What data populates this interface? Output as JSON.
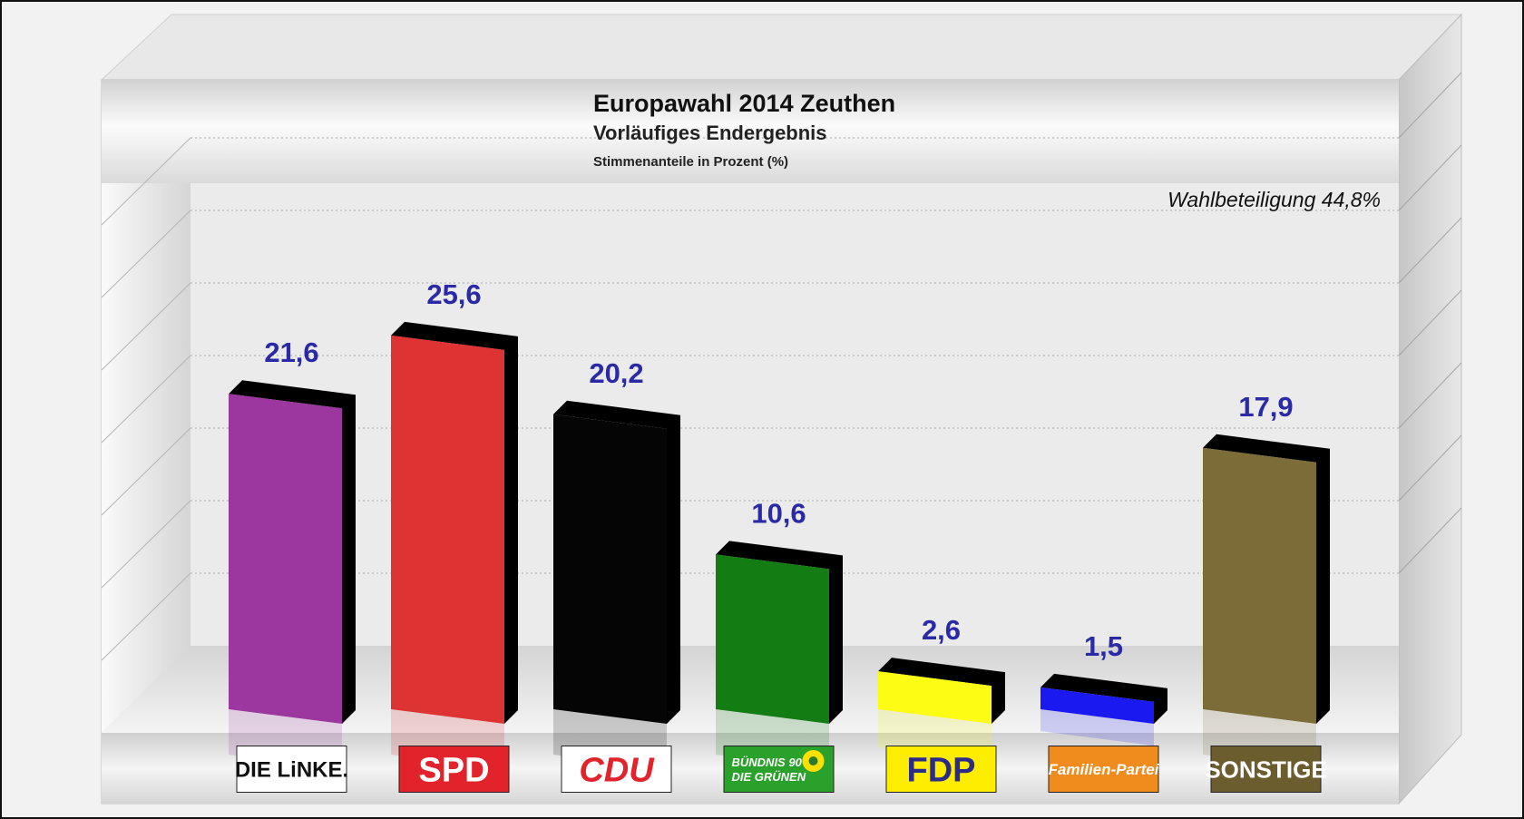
{
  "chart_data": {
    "type": "bar",
    "title": "Europawahl 2014 Zeuthen",
    "subtitle": "Vorläufiges Endergebnis",
    "unit_note": "Stimmenanteile in Prozent (%)",
    "annotation": "Wahlbeteiligung 44,8%",
    "categories": [
      "DIE LINKE.",
      "SPD",
      "CDU",
      "BÜNDNIS 90 DIE GRÜNEN",
      "FDP",
      "Familien-Partei",
      "SONSTIGE"
    ],
    "values": [
      21.6,
      25.6,
      20.2,
      10.6,
      2.6,
      1.5,
      17.9
    ],
    "value_labels": [
      "21,6",
      "25,6",
      "20,2",
      "10,6",
      "2,6",
      "1,5",
      "17,9"
    ],
    "colors": [
      "#9b379e",
      "#dd3333",
      "#050505",
      "#137c13",
      "#fcfc14",
      "#1a1af0",
      "#7b6c38"
    ],
    "ylim": [
      0,
      35
    ],
    "grid": true,
    "style": "3d-bars"
  },
  "logos": [
    {
      "icon": "die-linke-logo",
      "lines": [
        "DIE LiNKE."
      ],
      "bg": "#ffffff",
      "fg": "#111111"
    },
    {
      "icon": "spd-logo",
      "lines": [
        "SPD"
      ],
      "bg": "#e2232b",
      "fg": "#ffffff"
    },
    {
      "icon": "cdu-logo",
      "lines": [
        "CDU"
      ],
      "bg": "#ffffff",
      "fg": "#e2232b"
    },
    {
      "icon": "gruene-logo",
      "lines": [
        "BÜNDNIS 90",
        "DIE GRÜNEN"
      ],
      "bg": "#2aa12a",
      "fg": "#ffffff"
    },
    {
      "icon": "fdp-logo",
      "lines": [
        "FDP"
      ],
      "bg": "#ffed00",
      "fg": "#2b2b8c"
    },
    {
      "icon": "familien-partei-logo",
      "lines": [
        "Familien-Partei"
      ],
      "bg": "#f08c1e",
      "fg": "#ffffff"
    },
    {
      "icon": "sonstige-logo",
      "lines": [
        "SONSTIGE"
      ],
      "bg": "#6b5d2e",
      "fg": "#ffffff"
    }
  ]
}
